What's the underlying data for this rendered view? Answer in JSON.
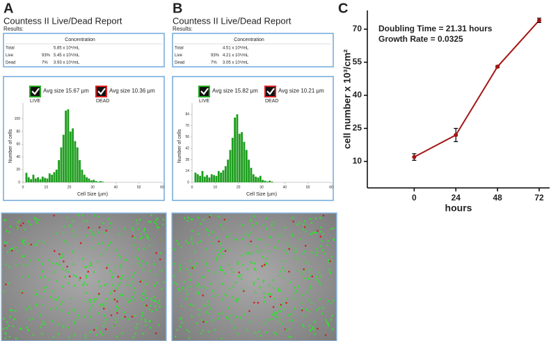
{
  "panels": [
    {
      "letter": "A",
      "title": "Countess II Live/Dead Report",
      "results_label": "Results:",
      "table": {
        "header": "Concentration",
        "rows": [
          [
            "Total",
            "5.85 x 10⁶/mL"
          ],
          [
            "Live",
            "93%",
            "5.45 x 10⁶/mL"
          ],
          [
            "Dead",
            "7%",
            "3.93 x 10⁵/mL"
          ]
        ]
      },
      "legend": [
        {
          "avg": "Avg size 15.67 µm",
          "label": "LIVE"
        },
        {
          "avg": "Avg size 10.36 µm",
          "label": "DEAD"
        }
      ]
    },
    {
      "letter": "B",
      "title": "Countess II Live/Dead Report",
      "results_label": "Results:",
      "table": {
        "header": "Concentration",
        "rows": [
          [
            "Total",
            "4.51 x 10⁶/mL"
          ],
          [
            "Live",
            "93%",
            "4.21 x 10⁶/mL"
          ],
          [
            "Dead",
            "7%",
            "3.05 x 10⁵/mL"
          ]
        ]
      },
      "legend": [
        {
          "avg": "Avg size 15.82 µm",
          "label": "LIVE"
        },
        {
          "avg": "Avg size 10.21 µm",
          "label": "DEAD"
        }
      ]
    },
    {
      "letter": "C"
    }
  ],
  "chart_data": [
    {
      "type": "histogram",
      "xlabel": "Cell Size (µm)",
      "ylabel": "Number of cells",
      "color": "#1e9e1e",
      "bins": [
        0,
        1,
        2,
        3,
        4,
        5,
        6,
        7,
        8,
        9,
        10,
        11,
        12,
        13,
        14,
        15,
        16,
        17,
        18,
        19,
        20,
        21,
        22,
        23,
        24,
        25,
        26,
        27,
        28,
        29,
        30,
        31,
        32,
        33,
        34,
        35
      ],
      "counts": [
        0,
        15,
        8,
        5,
        12,
        6,
        8,
        5,
        9,
        7,
        6,
        14,
        12,
        16,
        20,
        35,
        55,
        75,
        113,
        115,
        80,
        85,
        65,
        55,
        35,
        20,
        12,
        8,
        6,
        3,
        4,
        2,
        1,
        2,
        1
      ],
      "xlim": [
        0,
        60
      ],
      "xticks": [
        0,
        10,
        20,
        30,
        40,
        50,
        60
      ],
      "ylim": [
        0,
        125
      ],
      "yticks": [
        0,
        20,
        40,
        60,
        80,
        100
      ]
    },
    {
      "type": "histogram",
      "xlabel": "Cell Size (µm)",
      "ylabel": "Number of cells",
      "color": "#1e9e1e",
      "bins": [
        0,
        1,
        2,
        3,
        4,
        5,
        6,
        7,
        8,
        9,
        10,
        11,
        12,
        13,
        14,
        15,
        16,
        17,
        18,
        19,
        20,
        21,
        22,
        23,
        24,
        25,
        26,
        27,
        28,
        29,
        30,
        31,
        32,
        33,
        34,
        35
      ],
      "counts": [
        0,
        12,
        10,
        8,
        14,
        7,
        9,
        6,
        10,
        9,
        8,
        14,
        12,
        15,
        20,
        28,
        40,
        55,
        80,
        84,
        60,
        62,
        50,
        40,
        28,
        18,
        10,
        7,
        6,
        8,
        3,
        2,
        1,
        2,
        1
      ],
      "xlim": [
        0,
        60
      ],
      "xticks": [
        0,
        10,
        20,
        30,
        40,
        50,
        60
      ],
      "ylim": [
        0,
        98
      ],
      "yticks": [
        0,
        14,
        28,
        42,
        56,
        70,
        84
      ]
    },
    {
      "type": "line",
      "xlabel": "hours",
      "ylabel": "cell number x 10³/cm²",
      "annotations": [
        "Doubling Time = 21.31 hours",
        "Growth Rate =  0.0325"
      ],
      "x": [
        0,
        24,
        48,
        72
      ],
      "series": [
        {
          "color": "#a31515",
          "values": [
            12,
            22,
            53,
            74
          ],
          "errors": [
            1.5,
            3,
            0.5,
            1
          ]
        }
      ],
      "xlim": [
        -27,
        78
      ],
      "xticks": [
        0,
        24,
        48,
        72
      ],
      "ylim": [
        -2,
        78.5
      ],
      "yticks": [
        10,
        25,
        40,
        55,
        70
      ]
    }
  ]
}
